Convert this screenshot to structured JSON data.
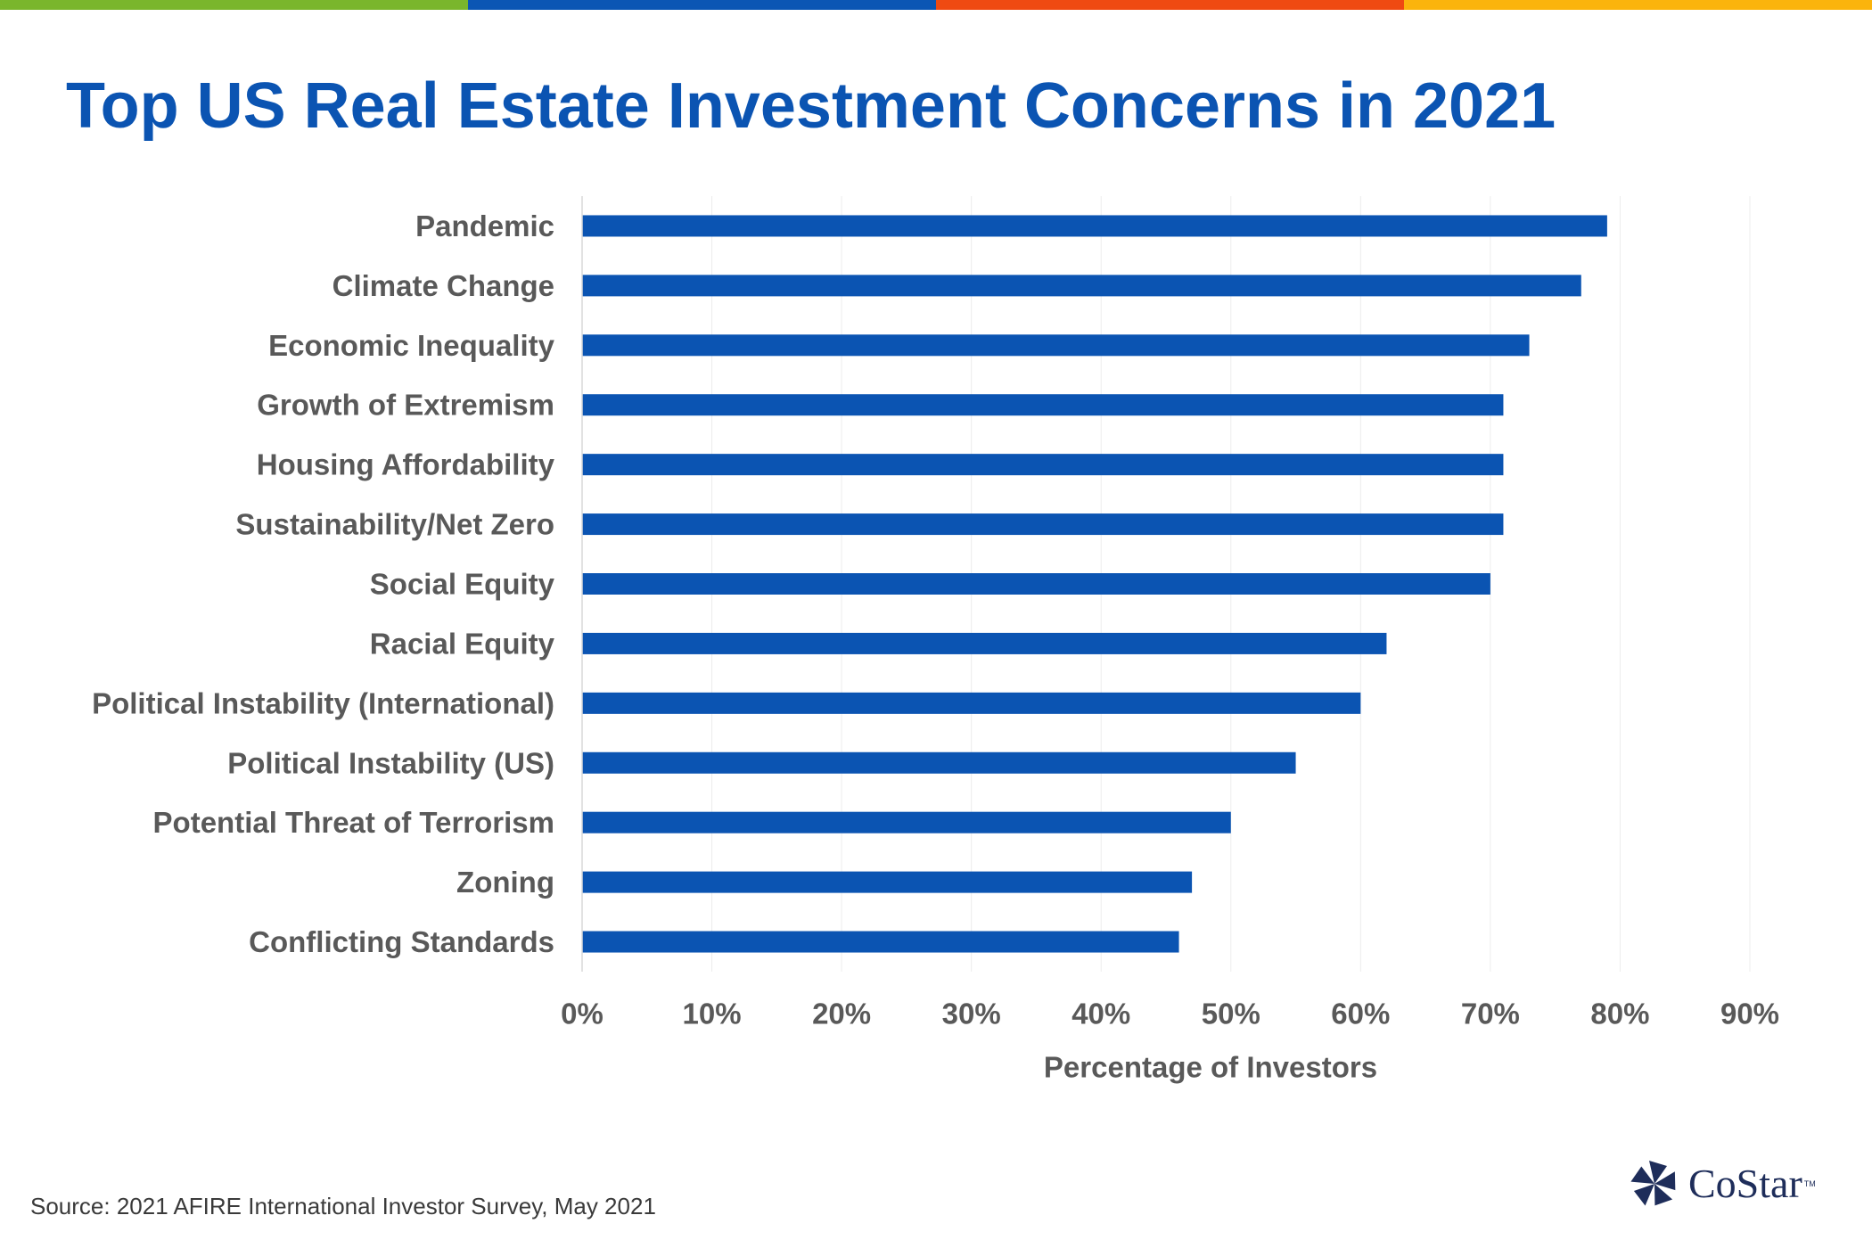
{
  "colors": {
    "stripe": [
      "#7ab62c",
      "#0b56b4",
      "#ef4a12",
      "#fbb40c"
    ],
    "title": "#0b54b2",
    "bar": "#0b54b2",
    "label": "#595959",
    "grid": "#ececec",
    "logo": "#1e2d5a"
  },
  "title": "Top US Real Estate Investment Concerns in 2021",
  "chart_data": {
    "type": "bar",
    "orientation": "horizontal",
    "categories": [
      "Pandemic",
      "Climate Change",
      "Economic Inequality",
      "Growth of Extremism",
      "Housing Affordability",
      "Sustainability/Net Zero",
      "Social Equity",
      "Racial Equity",
      "Political Instability (International)",
      "Political Instability (US)",
      "Potential Threat of Terrorism",
      "Zoning",
      "Conflicting Standards"
    ],
    "values": [
      79,
      77,
      73,
      71,
      71,
      71,
      70,
      62,
      60,
      55,
      50,
      47,
      46
    ],
    "xlabel": "Percentage of Investors",
    "ylabel": "",
    "xlim": [
      0,
      90
    ],
    "xticks": [
      0,
      10,
      20,
      30,
      40,
      50,
      60,
      70,
      80,
      90
    ],
    "tick_labels": [
      "0%",
      "10%",
      "20%",
      "30%",
      "40%",
      "50%",
      "60%",
      "70%",
      "80%",
      "90%"
    ],
    "grid": true
  },
  "source": "Source: 2021 AFIRE International Investor Survey, May 2021",
  "logo": {
    "name": "CoStar",
    "tm": "TM",
    "icon": "costar-star-icon"
  }
}
